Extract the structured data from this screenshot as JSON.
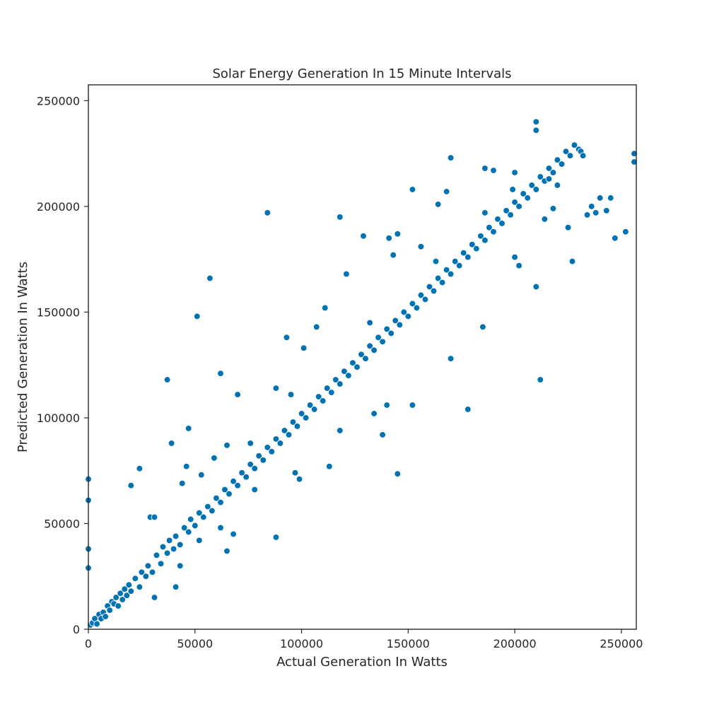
{
  "chart_data": {
    "type": "scatter",
    "title": "Solar Energy Generation In 15 Minute Intervals",
    "xlabel": "Actual Generation In Watts",
    "ylabel": "Predicted Generation In Watts",
    "xlim": [
      0,
      257000
    ],
    "ylim": [
      0,
      257500
    ],
    "xticks": [
      0,
      50000,
      100000,
      150000,
      200000,
      250000
    ],
    "yticks": [
      0,
      50000,
      100000,
      150000,
      200000,
      250000
    ],
    "xtick_labels": [
      "0",
      "50000",
      "100000",
      "150000",
      "200000",
      "250000"
    ],
    "ytick_labels": [
      "0",
      "50000",
      "100000",
      "150000",
      "200000",
      "250000"
    ],
    "grid": false,
    "marker_color": "#0072b2",
    "marker_edge_color": "#ffffff",
    "series": [
      {
        "values": [
          [
            0,
            71000
          ],
          [
            0,
            61000
          ],
          [
            0,
            38000
          ],
          [
            0,
            29000
          ],
          [
            1000,
            2000
          ],
          [
            2000,
            3000
          ],
          [
            3000,
            5000
          ],
          [
            4000,
            2500
          ],
          [
            5000,
            7000
          ],
          [
            6000,
            5000
          ],
          [
            7000,
            8000
          ],
          [
            8000,
            6000
          ],
          [
            9000,
            11000
          ],
          [
            10000,
            9000
          ],
          [
            11000,
            13000
          ],
          [
            12000,
            12000
          ],
          [
            13000,
            15000
          ],
          [
            14000,
            11000
          ],
          [
            15000,
            17000
          ],
          [
            16000,
            14000
          ],
          [
            17000,
            19000
          ],
          [
            18000,
            16000
          ],
          [
            19000,
            21000
          ],
          [
            20000,
            18000
          ],
          [
            22000,
            24000
          ],
          [
            24000,
            20000
          ],
          [
            25000,
            27000
          ],
          [
            27000,
            25000
          ],
          [
            28000,
            30000
          ],
          [
            30000,
            27000
          ],
          [
            32000,
            35000
          ],
          [
            34000,
            31000
          ],
          [
            35000,
            39000
          ],
          [
            37000,
            36000
          ],
          [
            38000,
            42000
          ],
          [
            40000,
            38000
          ],
          [
            41000,
            44000
          ],
          [
            43000,
            40000
          ],
          [
            45000,
            48000
          ],
          [
            47000,
            46000
          ],
          [
            48000,
            52000
          ],
          [
            50000,
            49000
          ],
          [
            52000,
            55000
          ],
          [
            54000,
            53000
          ],
          [
            56000,
            58000
          ],
          [
            58000,
            56000
          ],
          [
            60000,
            62000
          ],
          [
            62000,
            60000
          ],
          [
            64000,
            66000
          ],
          [
            66000,
            64000
          ],
          [
            68000,
            70000
          ],
          [
            70000,
            68000
          ],
          [
            72000,
            74000
          ],
          [
            74000,
            72000
          ],
          [
            76000,
            78000
          ],
          [
            78000,
            76000
          ],
          [
            80000,
            82000
          ],
          [
            82000,
            80000
          ],
          [
            84000,
            86000
          ],
          [
            86000,
            84000
          ],
          [
            88000,
            90000
          ],
          [
            90000,
            88000
          ],
          [
            92000,
            94000
          ],
          [
            94000,
            92000
          ],
          [
            96000,
            98000
          ],
          [
            98000,
            96000
          ],
          [
            100000,
            102000
          ],
          [
            102000,
            100000
          ],
          [
            104000,
            106000
          ],
          [
            106000,
            104000
          ],
          [
            108000,
            110000
          ],
          [
            110000,
            108000
          ],
          [
            112000,
            114000
          ],
          [
            114000,
            112000
          ],
          [
            116000,
            118000
          ],
          [
            118000,
            116000
          ],
          [
            120000,
            122000
          ],
          [
            122000,
            120000
          ],
          [
            124000,
            126000
          ],
          [
            126000,
            124000
          ],
          [
            128000,
            130000
          ],
          [
            130000,
            128000
          ],
          [
            132000,
            134000
          ],
          [
            134000,
            132000
          ],
          [
            136000,
            138000
          ],
          [
            138000,
            136000
          ],
          [
            140000,
            142000
          ],
          [
            142000,
            140000
          ],
          [
            144000,
            146000
          ],
          [
            146000,
            144000
          ],
          [
            148000,
            150000
          ],
          [
            150000,
            148000
          ],
          [
            152000,
            154000
          ],
          [
            154000,
            152000
          ],
          [
            156000,
            158000
          ],
          [
            158000,
            156000
          ],
          [
            160000,
            162000
          ],
          [
            162000,
            160000
          ],
          [
            164000,
            166000
          ],
          [
            166000,
            164000
          ],
          [
            168000,
            170000
          ],
          [
            170000,
            168000
          ],
          [
            172000,
            174000
          ],
          [
            174000,
            172000
          ],
          [
            176000,
            178000
          ],
          [
            178000,
            176000
          ],
          [
            180000,
            182000
          ],
          [
            182000,
            180000
          ],
          [
            184000,
            186000
          ],
          [
            186000,
            184000
          ],
          [
            188000,
            190000
          ],
          [
            190000,
            188000
          ],
          [
            192000,
            194000
          ],
          [
            194000,
            192000
          ],
          [
            196000,
            198000
          ],
          [
            198000,
            196000
          ],
          [
            200000,
            202000
          ],
          [
            202000,
            200000
          ],
          [
            204000,
            206000
          ],
          [
            206000,
            204000
          ],
          [
            208000,
            210000
          ],
          [
            210000,
            208000
          ],
          [
            212000,
            214000
          ],
          [
            214000,
            212000
          ],
          [
            216000,
            218000
          ],
          [
            218000,
            216000
          ],
          [
            220000,
            222000
          ],
          [
            222000,
            220000
          ],
          [
            224000,
            226000
          ],
          [
            226000,
            224000
          ],
          [
            228000,
            229000
          ],
          [
            230000,
            227000
          ],
          [
            231000,
            226000
          ],
          [
            232000,
            224000
          ],
          [
            20000,
            68000
          ],
          [
            24000,
            76000
          ],
          [
            37000,
            118000
          ],
          [
            39000,
            88000
          ],
          [
            47000,
            95000
          ],
          [
            51000,
            148000
          ],
          [
            57000,
            166000
          ],
          [
            62000,
            121000
          ],
          [
            70000,
            111000
          ],
          [
            84000,
            197000
          ],
          [
            93000,
            138000
          ],
          [
            101000,
            133000
          ],
          [
            107000,
            143000
          ],
          [
            111000,
            152000
          ],
          [
            118000,
            195000
          ],
          [
            129000,
            186000
          ],
          [
            141000,
            185000
          ],
          [
            145000,
            187000
          ],
          [
            152000,
            208000
          ],
          [
            164000,
            201000
          ],
          [
            168000,
            207000
          ],
          [
            170000,
            223000
          ],
          [
            186000,
            218000
          ],
          [
            190000,
            217000
          ],
          [
            200000,
            216000
          ],
          [
            210000,
            240000
          ],
          [
            210000,
            236000
          ],
          [
            256000,
            225000
          ],
          [
            256000,
            221000
          ],
          [
            29000,
            53000
          ],
          [
            31000,
            53000
          ],
          [
            44000,
            69000
          ],
          [
            46000,
            77000
          ],
          [
            53000,
            73000
          ],
          [
            59000,
            81000
          ],
          [
            65000,
            87000
          ],
          [
            76000,
            88000
          ],
          [
            88000,
            114000
          ],
          [
            95000,
            111000
          ],
          [
            121000,
            168000
          ],
          [
            132000,
            145000
          ],
          [
            143000,
            177000
          ],
          [
            156000,
            181000
          ],
          [
            163000,
            174000
          ],
          [
            186000,
            197000
          ],
          [
            199000,
            208000
          ],
          [
            216000,
            213000
          ],
          [
            220000,
            210000
          ],
          [
            31000,
            15000
          ],
          [
            41000,
            20000
          ],
          [
            43000,
            30000
          ],
          [
            52000,
            42000
          ],
          [
            62000,
            48000
          ],
          [
            65000,
            37000
          ],
          [
            68000,
            45000
          ],
          [
            78000,
            66000
          ],
          [
            88000,
            43500
          ],
          [
            97000,
            74000
          ],
          [
            99000,
            71000
          ],
          [
            113000,
            77000
          ],
          [
            118000,
            94000
          ],
          [
            134000,
            102000
          ],
          [
            138000,
            92000
          ],
          [
            140000,
            106000
          ],
          [
            145000,
            73500
          ],
          [
            152000,
            106000
          ],
          [
            170000,
            128000
          ],
          [
            178000,
            104000
          ],
          [
            185000,
            143000
          ],
          [
            200000,
            176000
          ],
          [
            202000,
            172000
          ],
          [
            210000,
            162000
          ],
          [
            212000,
            118000
          ],
          [
            227000,
            174000
          ],
          [
            234000,
            196000
          ],
          [
            238000,
            197000
          ],
          [
            243000,
            198000
          ],
          [
            247000,
            185000
          ],
          [
            252000,
            188000
          ],
          [
            245000,
            204000
          ],
          [
            240000,
            204000
          ],
          [
            236000,
            200000
          ],
          [
            225000,
            190000
          ],
          [
            218000,
            199000
          ],
          [
            214000,
            194000
          ]
        ]
      }
    ]
  }
}
